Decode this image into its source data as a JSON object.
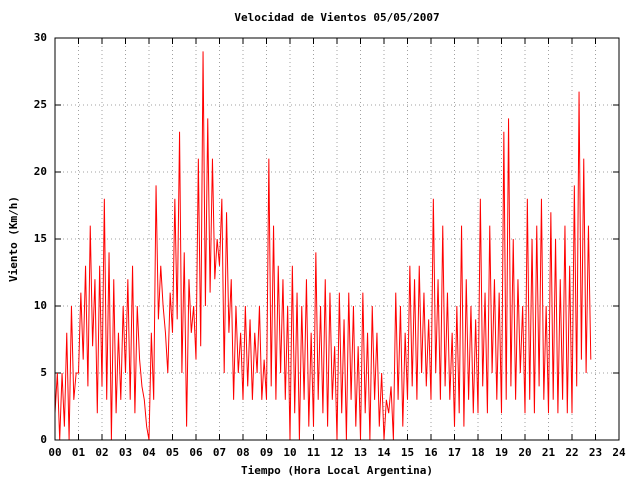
{
  "chart_data": {
    "type": "line",
    "title": "Velocidad de Vientos 05/05/2007",
    "xlabel": "Tiempo (Hora Local Argentina)",
    "ylabel": "Viento (Km/h)",
    "xlim": [
      0,
      24
    ],
    "ylim": [
      0,
      30
    ],
    "xticks": [
      {
        "value": 0,
        "label": "00"
      },
      {
        "value": 1,
        "label": "01"
      },
      {
        "value": 2,
        "label": "02"
      },
      {
        "value": 3,
        "label": "03"
      },
      {
        "value": 4,
        "label": "04"
      },
      {
        "value": 5,
        "label": "05"
      },
      {
        "value": 6,
        "label": "06"
      },
      {
        "value": 7,
        "label": "07"
      },
      {
        "value": 8,
        "label": "08"
      },
      {
        "value": 9,
        "label": "09"
      },
      {
        "value": 10,
        "label": "10"
      },
      {
        "value": 11,
        "label": "11"
      },
      {
        "value": 12,
        "label": "12"
      },
      {
        "value": 13,
        "label": "13"
      },
      {
        "value": 14,
        "label": "14"
      },
      {
        "value": 15,
        "label": "15"
      },
      {
        "value": 16,
        "label": "16"
      },
      {
        "value": 17,
        "label": "17"
      },
      {
        "value": 18,
        "label": "18"
      },
      {
        "value": 19,
        "label": "19"
      },
      {
        "value": 20,
        "label": "20"
      },
      {
        "value": 21,
        "label": "21"
      },
      {
        "value": 22,
        "label": "22"
      },
      {
        "value": 23,
        "label": "23"
      },
      {
        "value": 24,
        "label": "24"
      }
    ],
    "yticks": [
      0,
      5,
      10,
      15,
      20,
      25,
      30
    ],
    "grid": true,
    "color": "#ff0000",
    "x": [
      0,
      0.1,
      0.2,
      0.3,
      0.4,
      0.5,
      0.6,
      0.7,
      0.8,
      0.9,
      1,
      1.1,
      1.2,
      1.3,
      1.4,
      1.5,
      1.6,
      1.7,
      1.8,
      1.9,
      2,
      2.1,
      2.2,
      2.3,
      2.4,
      2.5,
      2.6,
      2.7,
      2.8,
      2.9,
      3,
      3.1,
      3.2,
      3.3,
      3.4,
      3.5,
      3.6,
      3.7,
      3.8,
      3.9,
      4,
      4.1,
      4.2,
      4.3,
      4.4,
      4.5,
      4.6,
      4.7,
      4.8,
      4.9,
      5,
      5.1,
      5.2,
      5.3,
      5.4,
      5.5,
      5.6,
      5.7,
      5.8,
      5.9,
      6,
      6.1,
      6.2,
      6.3,
      6.4,
      6.5,
      6.6,
      6.7,
      6.8,
      6.9,
      7,
      7.1,
      7.2,
      7.3,
      7.4,
      7.5,
      7.6,
      7.7,
      7.8,
      7.9,
      8,
      8.1,
      8.2,
      8.3,
      8.4,
      8.5,
      8.6,
      8.7,
      8.8,
      8.9,
      9,
      9.1,
      9.2,
      9.3,
      9.4,
      9.5,
      9.6,
      9.7,
      9.8,
      9.9,
      10,
      10.1,
      10.2,
      10.3,
      10.4,
      10.5,
      10.6,
      10.7,
      10.8,
      10.9,
      11,
      11.1,
      11.2,
      11.3,
      11.4,
      11.5,
      11.6,
      11.7,
      11.8,
      11.9,
      12,
      12.1,
      12.2,
      12.3,
      12.4,
      12.5,
      12.6,
      12.7,
      12.8,
      12.9,
      13,
      13.1,
      13.2,
      13.3,
      13.4,
      13.5,
      13.6,
      13.7,
      13.8,
      13.9,
      14,
      14.1,
      14.2,
      14.3,
      14.4,
      14.5,
      14.6,
      14.7,
      14.8,
      14.9,
      15,
      15.1,
      15.2,
      15.3,
      15.4,
      15.5,
      15.6,
      15.7,
      15.8,
      15.9,
      16,
      16.1,
      16.2,
      16.3,
      16.4,
      16.5,
      16.6,
      16.7,
      16.8,
      16.9,
      17,
      17.1,
      17.2,
      17.3,
      17.4,
      17.5,
      17.6,
      17.7,
      17.8,
      17.9,
      18,
      18.1,
      18.2,
      18.3,
      18.4,
      18.5,
      18.6,
      18.7,
      18.8,
      18.9,
      19,
      19.1,
      19.2,
      19.3,
      19.4,
      19.5,
      19.6,
      19.7,
      19.8,
      19.9,
      20,
      20.1,
      20.2,
      20.3,
      20.4,
      20.5,
      20.6,
      20.7,
      20.8,
      20.9,
      21,
      21.1,
      21.2,
      21.3,
      21.4,
      21.5,
      21.6,
      21.7,
      21.8,
      21.9,
      22,
      22.1,
      22.2,
      22.3,
      22.4,
      22.5,
      22.6,
      22.7,
      22.8
    ],
    "values": [
      2,
      5,
      0,
      5,
      1,
      8,
      0,
      10,
      3,
      5,
      5,
      11,
      6,
      13,
      4,
      16,
      7,
      12,
      2,
      13,
      4,
      18,
      3,
      14,
      0,
      12,
      2,
      8,
      3,
      10,
      5,
      12,
      3,
      13,
      2,
      10,
      6,
      4,
      3,
      1,
      0,
      8,
      3,
      19,
      9,
      13,
      10,
      8,
      5,
      11,
      8,
      18,
      9,
      23,
      5,
      14,
      1,
      12,
      8,
      10,
      6,
      21,
      7,
      29,
      10,
      24,
      11,
      21,
      12,
      15,
      13,
      18,
      5,
      17,
      8,
      12,
      3,
      10,
      5,
      8,
      3,
      10,
      4,
      9,
      3,
      8,
      5,
      10,
      3,
      6,
      3,
      21,
      4,
      16,
      3,
      13,
      5,
      12,
      3,
      10,
      0,
      13,
      2,
      11,
      0,
      10,
      3,
      12,
      1,
      8,
      1,
      14,
      3,
      10,
      2,
      12,
      1,
      11,
      3,
      7,
      0,
      11,
      2,
      9,
      0,
      11,
      3,
      10,
      1,
      7,
      0,
      11,
      2,
      8,
      0,
      10,
      3,
      8,
      1,
      5,
      0,
      3,
      2,
      4,
      0,
      11,
      3,
      10,
      1,
      8,
      3,
      13,
      4,
      12,
      3,
      13,
      5,
      11,
      4,
      9,
      3,
      18,
      5,
      12,
      3,
      16,
      4,
      11,
      3,
      8,
      1,
      10,
      2,
      16,
      1,
      12,
      3,
      10,
      2,
      9,
      2,
      18,
      4,
      11,
      2,
      16,
      5,
      12,
      3,
      11,
      2,
      23,
      3,
      24,
      4,
      15,
      3,
      12,
      5,
      10,
      2,
      18,
      3,
      15,
      2,
      16,
      4,
      18,
      3,
      10,
      2,
      17,
      3,
      15,
      2,
      12,
      3,
      16,
      2,
      13,
      2,
      19,
      4,
      26,
      6,
      21,
      5,
      16,
      6
    ]
  }
}
